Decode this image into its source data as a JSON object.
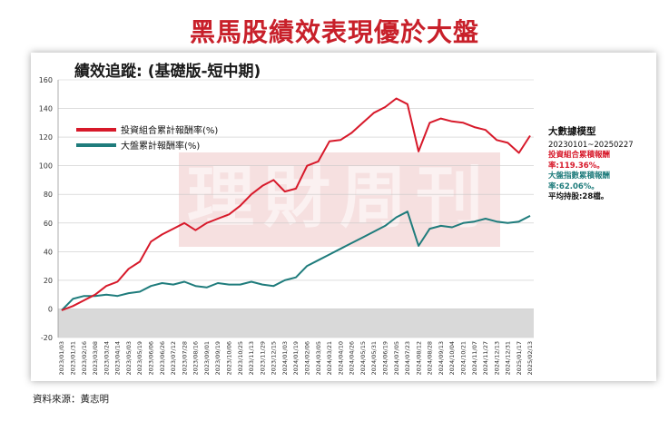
{
  "headline": "黑馬股績效表現優於大盤",
  "source": "資料來源：黃志明",
  "watermark": "理財周刊",
  "colors": {
    "portfolio": "#d7192a",
    "index": "#1f7c7c",
    "headline": "#c8202a"
  },
  "side_panel": {
    "title": "大數據模型",
    "period": "20230101~20250227",
    "portfolio_label": "投資組合累積報酬",
    "portfolio_value": "率:119.36%。",
    "index_label": "大盤指數累積報酬",
    "index_value": "率:62.06%。",
    "holding": "平均持股:28檔。"
  },
  "chart_data": {
    "type": "line",
    "title": "績效追蹤: (基礎版-短中期)",
    "xlabel": "",
    "ylabel": "",
    "ylim": [
      -20,
      160
    ],
    "yticks": [
      -20,
      0,
      20,
      40,
      60,
      80,
      100,
      120,
      140,
      160
    ],
    "grid": true,
    "legend": "top-left",
    "x": [
      "2023/01/03",
      "2023/01/31",
      "2023/02/16",
      "2023/03/08",
      "2023/03/24",
      "2023/04/14",
      "2023/05/03",
      "2023/05/19",
      "2023/06/06",
      "2023/06/26",
      "2023/07/12",
      "2023/07/28",
      "2023/08/16",
      "2023/09/01",
      "2023/09/19",
      "2023/10/06",
      "2023/10/25",
      "2023/11/13",
      "2023/11/29",
      "2023/12/15",
      "2024/01/03",
      "2024/01/19",
      "2024/02/06",
      "2024/03/05",
      "2024/03/21",
      "2024/04/10",
      "2024/04/26",
      "2024/05/15",
      "2024/05/31",
      "2024/06/19",
      "2024/07/05",
      "2024/07/23",
      "2024/08/12",
      "2024/08/28",
      "2024/09/13",
      "2024/10/04",
      "2024/10/21",
      "2024/11/07",
      "2024/11/27",
      "2024/12/13",
      "2024/12/31",
      "2025/01/17",
      "2025/02/13"
    ],
    "series": [
      {
        "name": "投資組合累計報酬率(%)",
        "values": [
          -1,
          2,
          6,
          10,
          16,
          19,
          28,
          33,
          47,
          52,
          56,
          60,
          55,
          60,
          63,
          66,
          72,
          80,
          86,
          90,
          82,
          84,
          100,
          103,
          117,
          118,
          123,
          130,
          137,
          141,
          147,
          143,
          110,
          130,
          133,
          131,
          130,
          127,
          125,
          118,
          116,
          109,
          121
        ]
      },
      {
        "name": "大盤累計報酬率(%)",
        "values": [
          -1,
          7,
          9,
          9,
          10,
          9,
          11,
          12,
          16,
          18,
          17,
          19,
          16,
          15,
          18,
          17,
          17,
          19,
          17,
          16,
          20,
          22,
          30,
          34,
          38,
          42,
          46,
          50,
          54,
          58,
          64,
          68,
          44,
          56,
          58,
          57,
          60,
          61,
          63,
          61,
          60,
          61,
          65
        ]
      }
    ]
  }
}
